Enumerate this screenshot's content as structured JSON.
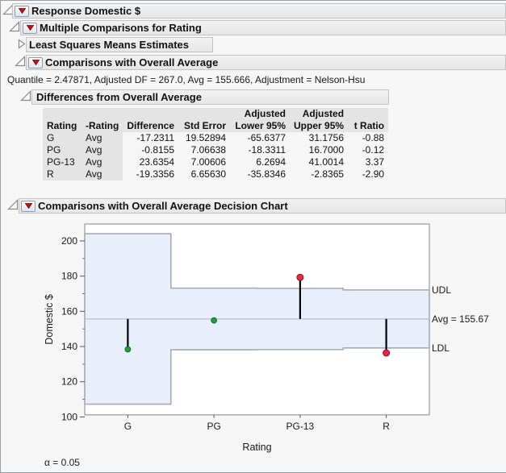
{
  "colors": {
    "header_bar_bg": "#ececec",
    "red_triangle": "#d40b0b",
    "band_fill": "#e9eefb",
    "band_border": "#a6abb7",
    "avg_line": "#bcc2d0",
    "needle": "#000000",
    "significant": "#e52740",
    "not_significant": "#21a038",
    "frame": "#999999"
  },
  "icons": {
    "disclosure_open": "open-outline-triangle",
    "disclosure_closed": "collapsed-outline-triangle",
    "red_triangle_menu": "red-down-triangle-button"
  },
  "outline": {
    "response_title": "Response Domestic $",
    "multiple_comparisons_title": "Multiple Comparisons for Rating",
    "lsm_estimates_title": "Least Squares Means Estimates",
    "comparisons_overall_title": "Comparisons with Overall Average",
    "quantile_line": "Quantile = 2.47871, Adjusted DF = 267.0, Avg = 155.666, Adjustment = Nelson-Hsu",
    "differences_title": "Differences from Overall Average",
    "decision_chart_title": "Comparisons with Overall Average Decision Chart"
  },
  "table": {
    "header_row1": [
      "",
      "",
      "",
      "",
      "Adjusted",
      "Adjusted",
      ""
    ],
    "header_row2": [
      "Rating",
      "-Rating",
      "Difference",
      "Std Error",
      "Lower 95%",
      "Upper 95%",
      "t Ratio"
    ],
    "rows": [
      [
        "G",
        "Avg",
        "-17.2311",
        "19.52894",
        "-65.6377",
        "31.1756",
        "-0.88"
      ],
      [
        "PG",
        "Avg",
        "-0.8155",
        "7.06638",
        "-18.3311",
        "16.7000",
        "-0.12"
      ],
      [
        "PG-13",
        "Avg",
        "23.6354",
        "7.00606",
        "6.2694",
        "41.0014",
        "3.37"
      ],
      [
        "R",
        "Avg",
        "-19.3356",
        "6.65630",
        "-35.8346",
        "-2.8365",
        "-2.90"
      ]
    ]
  },
  "chart_data": {
    "type": "decision-chart",
    "title": "Comparisons with Overall Average Decision Chart",
    "xlabel": "Rating",
    "ylabel": "Domestic $",
    "ylim": [
      101.2,
      209.6
    ],
    "yticks": [
      100,
      120,
      140,
      160,
      180,
      200
    ],
    "yticks_minor": [
      110,
      130,
      150,
      170,
      190
    ],
    "categories": [
      "G",
      "PG",
      "PG-13",
      "R"
    ],
    "avg": 155.666,
    "avg_label": "Avg = 155.67",
    "udl_label": "UDL",
    "ldl_label": "LDL",
    "alpha_note": "α = 0.05",
    "groups": [
      {
        "label": "G",
        "mean": 138.43,
        "ldl": 107.26,
        "udl": 204.07,
        "significant": false
      },
      {
        "label": "PG",
        "mean": 154.85,
        "ldl": 138.15,
        "udl": 173.18,
        "significant": false
      },
      {
        "label": "PG-13",
        "mean": 179.3,
        "ldl": 138.3,
        "udl": 173.03,
        "significant": true
      },
      {
        "label": "R",
        "mean": 136.33,
        "ldl": 139.17,
        "udl": 172.17,
        "significant": true
      }
    ]
  }
}
